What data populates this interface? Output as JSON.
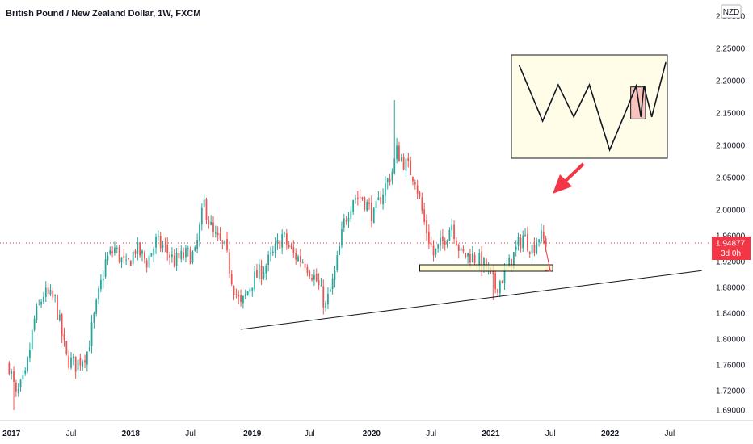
{
  "chart_data": {
    "type": "candlestick",
    "title": "British Pound / New Zealand Dollar, 1W, FXCM",
    "currency": "NZD",
    "ylim": [
      1.675,
      2.325
    ],
    "y_ticks": [
      "2.30000",
      "2.25000",
      "2.20000",
      "2.15000",
      "2.10000",
      "2.05000",
      "2.00000",
      "1.96000",
      "1.92000",
      "1.88000",
      "1.84000",
      "1.80000",
      "1.76000",
      "1.72000",
      "1.69000"
    ],
    "x_ticks": [
      {
        "label": "2017",
        "bold": true
      },
      {
        "label": "Jul",
        "bold": false
      },
      {
        "label": "2018",
        "bold": true
      },
      {
        "label": "Jul",
        "bold": false
      },
      {
        "label": "2019",
        "bold": true
      },
      {
        "label": "Jul",
        "bold": false
      },
      {
        "label": "2020",
        "bold": true
      },
      {
        "label": "Jul",
        "bold": false
      },
      {
        "label": "2021",
        "bold": true
      },
      {
        "label": "Jul",
        "bold": false
      },
      {
        "label": "2022",
        "bold": true
      },
      {
        "label": "Jul",
        "bold": false
      }
    ],
    "current_price": "1.94877",
    "countdown": "3d 0h",
    "colors": {
      "up": "#26a69a",
      "down": "#ef5350",
      "price_tag": "#f23645",
      "inset_bg": "#fffde7",
      "zone_bg": "#fff9c4",
      "arrow": "#f23645"
    },
    "series": [
      {
        "name": "",
        "anchors": [
          [
            "2016-12-26",
            1.76
          ],
          [
            "2017-01-16",
            1.71
          ],
          [
            "2017-02-13",
            1.74
          ],
          [
            "2017-03-13",
            1.83
          ],
          [
            "2017-04-10",
            1.87
          ],
          [
            "2017-05-15",
            1.86
          ],
          [
            "2017-06-19",
            1.77
          ],
          [
            "2017-07-17",
            1.76
          ],
          [
            "2017-08-21",
            1.78
          ],
          [
            "2017-09-18",
            1.85
          ],
          [
            "2017-10-16",
            1.92
          ],
          [
            "2017-11-13",
            1.94
          ],
          [
            "2017-12-18",
            1.91
          ],
          [
            "2018-01-15",
            1.94
          ],
          [
            "2018-02-19",
            1.92
          ],
          [
            "2018-03-19",
            1.95
          ],
          [
            "2018-04-16",
            1.94
          ],
          [
            "2018-05-14",
            1.92
          ],
          [
            "2018-06-18",
            1.93
          ],
          [
            "2018-07-16",
            1.93
          ],
          [
            "2018-08-13",
            2.01
          ],
          [
            "2018-09-10",
            1.96
          ],
          [
            "2018-10-15",
            1.94
          ],
          [
            "2018-11-12",
            1.88
          ],
          [
            "2018-12-03",
            1.85
          ],
          [
            "2019-01-07",
            1.89
          ],
          [
            "2019-02-11",
            1.91
          ],
          [
            "2019-03-11",
            1.93
          ],
          [
            "2019-04-08",
            1.96
          ],
          [
            "2019-05-13",
            1.93
          ],
          [
            "2019-06-17",
            1.92
          ],
          [
            "2019-07-22",
            1.89
          ],
          [
            "2019-08-19",
            1.85
          ],
          [
            "2019-09-16",
            1.9
          ],
          [
            "2019-10-14",
            1.98
          ],
          [
            "2019-11-11",
            2.02
          ],
          [
            "2019-12-09",
            2.02
          ],
          [
            "2020-01-13",
            1.99
          ],
          [
            "2020-02-10",
            2.03
          ],
          [
            "2020-03-09",
            2.06
          ],
          [
            "2020-03-23",
            2.09
          ],
          [
            "2020-04-20",
            2.07
          ],
          [
            "2020-05-18",
            2.05
          ],
          [
            "2020-06-15",
            1.98
          ],
          [
            "2020-07-13",
            1.93
          ],
          [
            "2020-08-10",
            1.95
          ],
          [
            "2020-09-07",
            1.98
          ],
          [
            "2020-10-05",
            1.93
          ],
          [
            "2020-11-02",
            1.93
          ],
          [
            "2020-11-30",
            1.92
          ],
          [
            "2020-12-21",
            1.91
          ],
          [
            "2021-01-18",
            1.88
          ],
          [
            "2021-02-15",
            1.9
          ],
          [
            "2021-03-15",
            1.93
          ],
          [
            "2021-04-12",
            1.96
          ],
          [
            "2021-05-10",
            1.94
          ],
          [
            "2021-05-31",
            1.96
          ],
          [
            "2021-06-21",
            1.94877
          ]
        ]
      }
    ],
    "spikes": [
      {
        "x": "2020-03-16",
        "high": 2.17
      },
      {
        "x": "2017-01-09",
        "low": 1.69
      },
      {
        "x": "2021-01-11",
        "low": 1.86
      }
    ],
    "trendline": [
      [
        "2018-12-03",
        1.815
      ],
      [
        "2022-10-10",
        1.906
      ]
    ],
    "support_zone": {
      "x0": "2020-06-01",
      "x1": "2021-07-12",
      "y0": 1.905,
      "y1": 1.915
    },
    "projection": {
      "x0": "2021-06-14",
      "y0": 1.955,
      "x1": "2021-07-05",
      "y1": 1.905
    },
    "inset_pattern": [
      [
        0.05,
        0.1
      ],
      [
        0.2,
        0.64
      ],
      [
        0.3,
        0.29
      ],
      [
        0.4,
        0.6
      ],
      [
        0.5,
        0.29
      ],
      [
        0.63,
        0.92
      ],
      [
        0.73,
        0.56
      ],
      [
        0.8,
        0.3
      ],
      [
        0.83,
        0.6
      ],
      [
        0.85,
        0.3
      ],
      [
        0.9,
        0.6
      ],
      [
        0.99,
        0.07
      ]
    ]
  }
}
